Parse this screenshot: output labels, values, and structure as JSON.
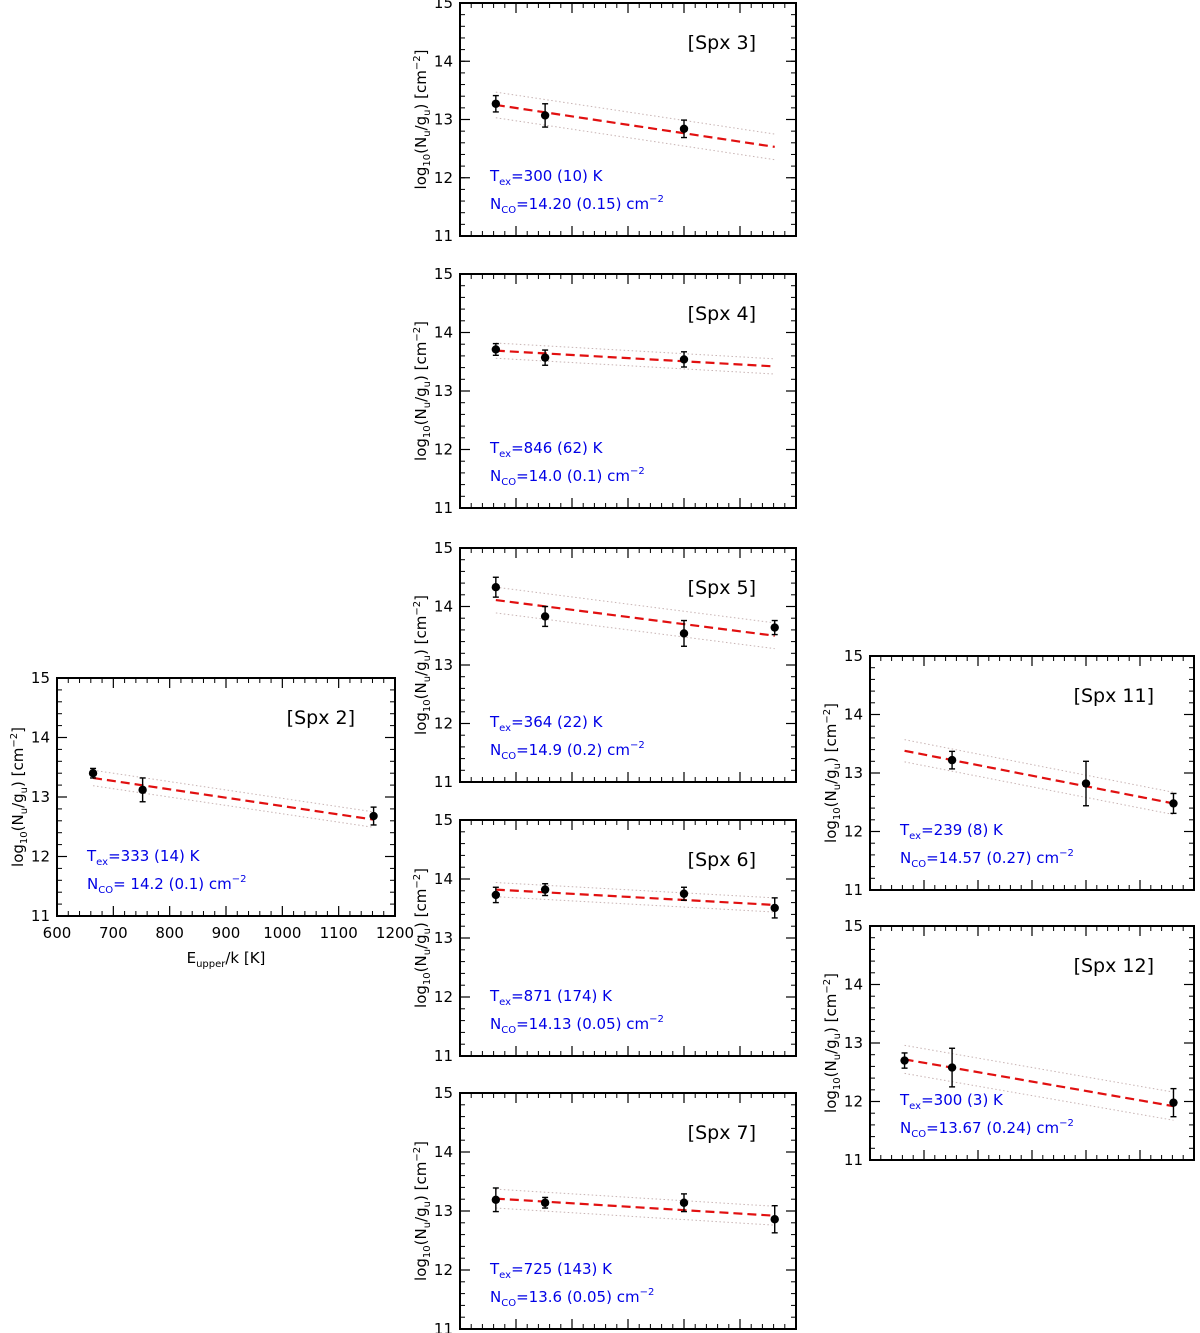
{
  "figure": {
    "colors": {
      "data": "#000000",
      "fit": "#e11010",
      "band": "#c8b4b4",
      "annotation": "#0000e6",
      "frame": "#000000"
    },
    "y_label": {
      "a": "log",
      "b": "10",
      "c": "(N",
      "d": "u",
      "e": "/g",
      "f": "u",
      "g": ")  [cm",
      "h": "−2",
      "i": "]"
    },
    "x_label": {
      "a": "E",
      "b": "upper",
      "c": "/k [K]"
    }
  },
  "chart_data": [
    {
      "type": "scatter",
      "id": "spx2",
      "label": "[Spx 2]",
      "xlim": [
        600,
        1200
      ],
      "ylim": [
        11,
        15
      ],
      "x_ticks": [
        "600",
        "700",
        "800",
        "900",
        "1000",
        "1100",
        "1200"
      ],
      "y_ticks": [
        "11",
        "12",
        "13",
        "14",
        "15"
      ],
      "show_x_labels": true,
      "points": [
        {
          "x": 664,
          "y": 13.4,
          "err": 0.08
        },
        {
          "x": 752,
          "y": 13.12,
          "err": 0.2
        },
        {
          "x": 1162,
          "y": 12.68,
          "err": 0.15
        }
      ],
      "fit": {
        "x": [
          664,
          1162
        ],
        "y": [
          13.32,
          12.62
        ],
        "band": 0.13
      },
      "annotation": {
        "tex": "=333 (14) K",
        "nco": "= 14.2 (0.1) cm",
        "exp": "−2"
      }
    },
    {
      "type": "scatter",
      "id": "spx3",
      "label": "[Spx 3]",
      "xlim": [
        600,
        1200
      ],
      "ylim": [
        11,
        15
      ],
      "x_ticks": [],
      "y_ticks": [
        "11",
        "12",
        "13",
        "14",
        "15"
      ],
      "show_x_labels": false,
      "points": [
        {
          "x": 664,
          "y": 13.27,
          "err": 0.14
        },
        {
          "x": 752,
          "y": 13.07,
          "err": 0.2
        },
        {
          "x": 1000,
          "y": 12.84,
          "err": 0.15
        }
      ],
      "fit": {
        "x": [
          664,
          1162
        ],
        "y": [
          13.25,
          12.53
        ],
        "band": 0.22
      },
      "annotation": {
        "tex": "=300 (10) K",
        "nco": "=14.20 (0.15) cm",
        "exp": "−2"
      }
    },
    {
      "type": "scatter",
      "id": "spx4",
      "label": "[Spx 4]",
      "xlim": [
        600,
        1200
      ],
      "ylim": [
        11,
        15
      ],
      "x_ticks": [],
      "y_ticks": [
        "11",
        "12",
        "13",
        "14",
        "15"
      ],
      "show_x_labels": false,
      "points": [
        {
          "x": 664,
          "y": 13.71,
          "err": 0.1
        },
        {
          "x": 752,
          "y": 13.57,
          "err": 0.13
        },
        {
          "x": 1000,
          "y": 13.54,
          "err": 0.13
        }
      ],
      "fit": {
        "x": [
          664,
          1162
        ],
        "y": [
          13.69,
          13.42
        ],
        "band": 0.13
      },
      "annotation": {
        "tex": "=846 (62) K",
        "nco": "=14.0 (0.1) cm",
        "exp": "−2"
      }
    },
    {
      "type": "scatter",
      "id": "spx5",
      "label": "[Spx 5]",
      "xlim": [
        600,
        1200
      ],
      "ylim": [
        11,
        15
      ],
      "x_ticks": [],
      "y_ticks": [
        "11",
        "12",
        "13",
        "14",
        "15"
      ],
      "show_x_labels": false,
      "points": [
        {
          "x": 664,
          "y": 14.33,
          "err": 0.17
        },
        {
          "x": 752,
          "y": 13.83,
          "err": 0.17
        },
        {
          "x": 1000,
          "y": 13.54,
          "err": 0.22
        },
        {
          "x": 1162,
          "y": 13.64,
          "err": 0.12
        }
      ],
      "fit": {
        "x": [
          664,
          1162
        ],
        "y": [
          14.11,
          13.5
        ],
        "band": 0.22
      },
      "annotation": {
        "tex": "=364 (22) K",
        "nco": "=14.9 (0.2) cm",
        "exp": "−2"
      }
    },
    {
      "type": "scatter",
      "id": "spx6",
      "label": "[Spx 6]",
      "xlim": [
        600,
        1200
      ],
      "ylim": [
        11,
        15
      ],
      "x_ticks": [],
      "y_ticks": [
        "11",
        "12",
        "13",
        "14",
        "15"
      ],
      "show_x_labels": false,
      "points": [
        {
          "x": 664,
          "y": 13.73,
          "err": 0.13
        },
        {
          "x": 752,
          "y": 13.82,
          "err": 0.1
        },
        {
          "x": 1000,
          "y": 13.75,
          "err": 0.11
        },
        {
          "x": 1162,
          "y": 13.51,
          "err": 0.17
        }
      ],
      "fit": {
        "x": [
          664,
          1162
        ],
        "y": [
          13.82,
          13.56
        ],
        "band": 0.12
      },
      "annotation": {
        "tex": "=871 (174) K",
        "nco": "=14.13 (0.05) cm",
        "exp": "−2"
      }
    },
    {
      "type": "scatter",
      "id": "spx7",
      "label": "[Spx 7]",
      "xlim": [
        600,
        1200
      ],
      "ylim": [
        11,
        15
      ],
      "x_ticks": [],
      "y_ticks": [
        "11",
        "12",
        "13",
        "14",
        "15"
      ],
      "show_x_labels": false,
      "points": [
        {
          "x": 664,
          "y": 13.19,
          "err": 0.2
        },
        {
          "x": 752,
          "y": 13.14,
          "err": 0.09
        },
        {
          "x": 1000,
          "y": 13.14,
          "err": 0.15
        },
        {
          "x": 1162,
          "y": 12.86,
          "err": 0.23
        }
      ],
      "fit": {
        "x": [
          664,
          1162
        ],
        "y": [
          13.21,
          12.92
        ],
        "band": 0.16
      },
      "annotation": {
        "tex": "=725 (143) K",
        "nco": "=13.6 (0.05) cm",
        "exp": "−2"
      }
    },
    {
      "type": "scatter",
      "id": "spx11",
      "label": "[Spx 11]",
      "xlim": [
        600,
        1200
      ],
      "ylim": [
        11,
        15
      ],
      "x_ticks": [],
      "y_ticks": [
        "11",
        "12",
        "13",
        "14",
        "15"
      ],
      "show_x_labels": false,
      "points": [
        {
          "x": 752,
          "y": 13.22,
          "err": 0.15
        },
        {
          "x": 1000,
          "y": 12.82,
          "err": 0.38
        },
        {
          "x": 1162,
          "y": 12.48,
          "err": 0.17
        }
      ],
      "fit": {
        "x": [
          664,
          1162
        ],
        "y": [
          13.38,
          12.48
        ],
        "band": 0.19
      },
      "annotation": {
        "tex": "=239 (8) K",
        "nco": "=14.57 (0.27) cm",
        "exp": "−2"
      }
    },
    {
      "type": "scatter",
      "id": "spx12",
      "label": "[Spx 12]",
      "xlim": [
        600,
        1200
      ],
      "ylim": [
        11,
        15
      ],
      "x_ticks": [],
      "y_ticks": [
        "11",
        "12",
        "13",
        "14",
        "15"
      ],
      "show_x_labels": false,
      "points": [
        {
          "x": 664,
          "y": 12.7,
          "err": 0.13
        },
        {
          "x": 752,
          "y": 12.58,
          "err": 0.33
        },
        {
          "x": 1162,
          "y": 11.98,
          "err": 0.24
        }
      ],
      "fit": {
        "x": [
          664,
          1162
        ],
        "y": [
          12.72,
          11.92
        ],
        "band": 0.24
      },
      "annotation": {
        "tex": "=300 (3) K",
        "nco": "=13.67 (0.24) cm",
        "exp": "−2"
      }
    }
  ]
}
